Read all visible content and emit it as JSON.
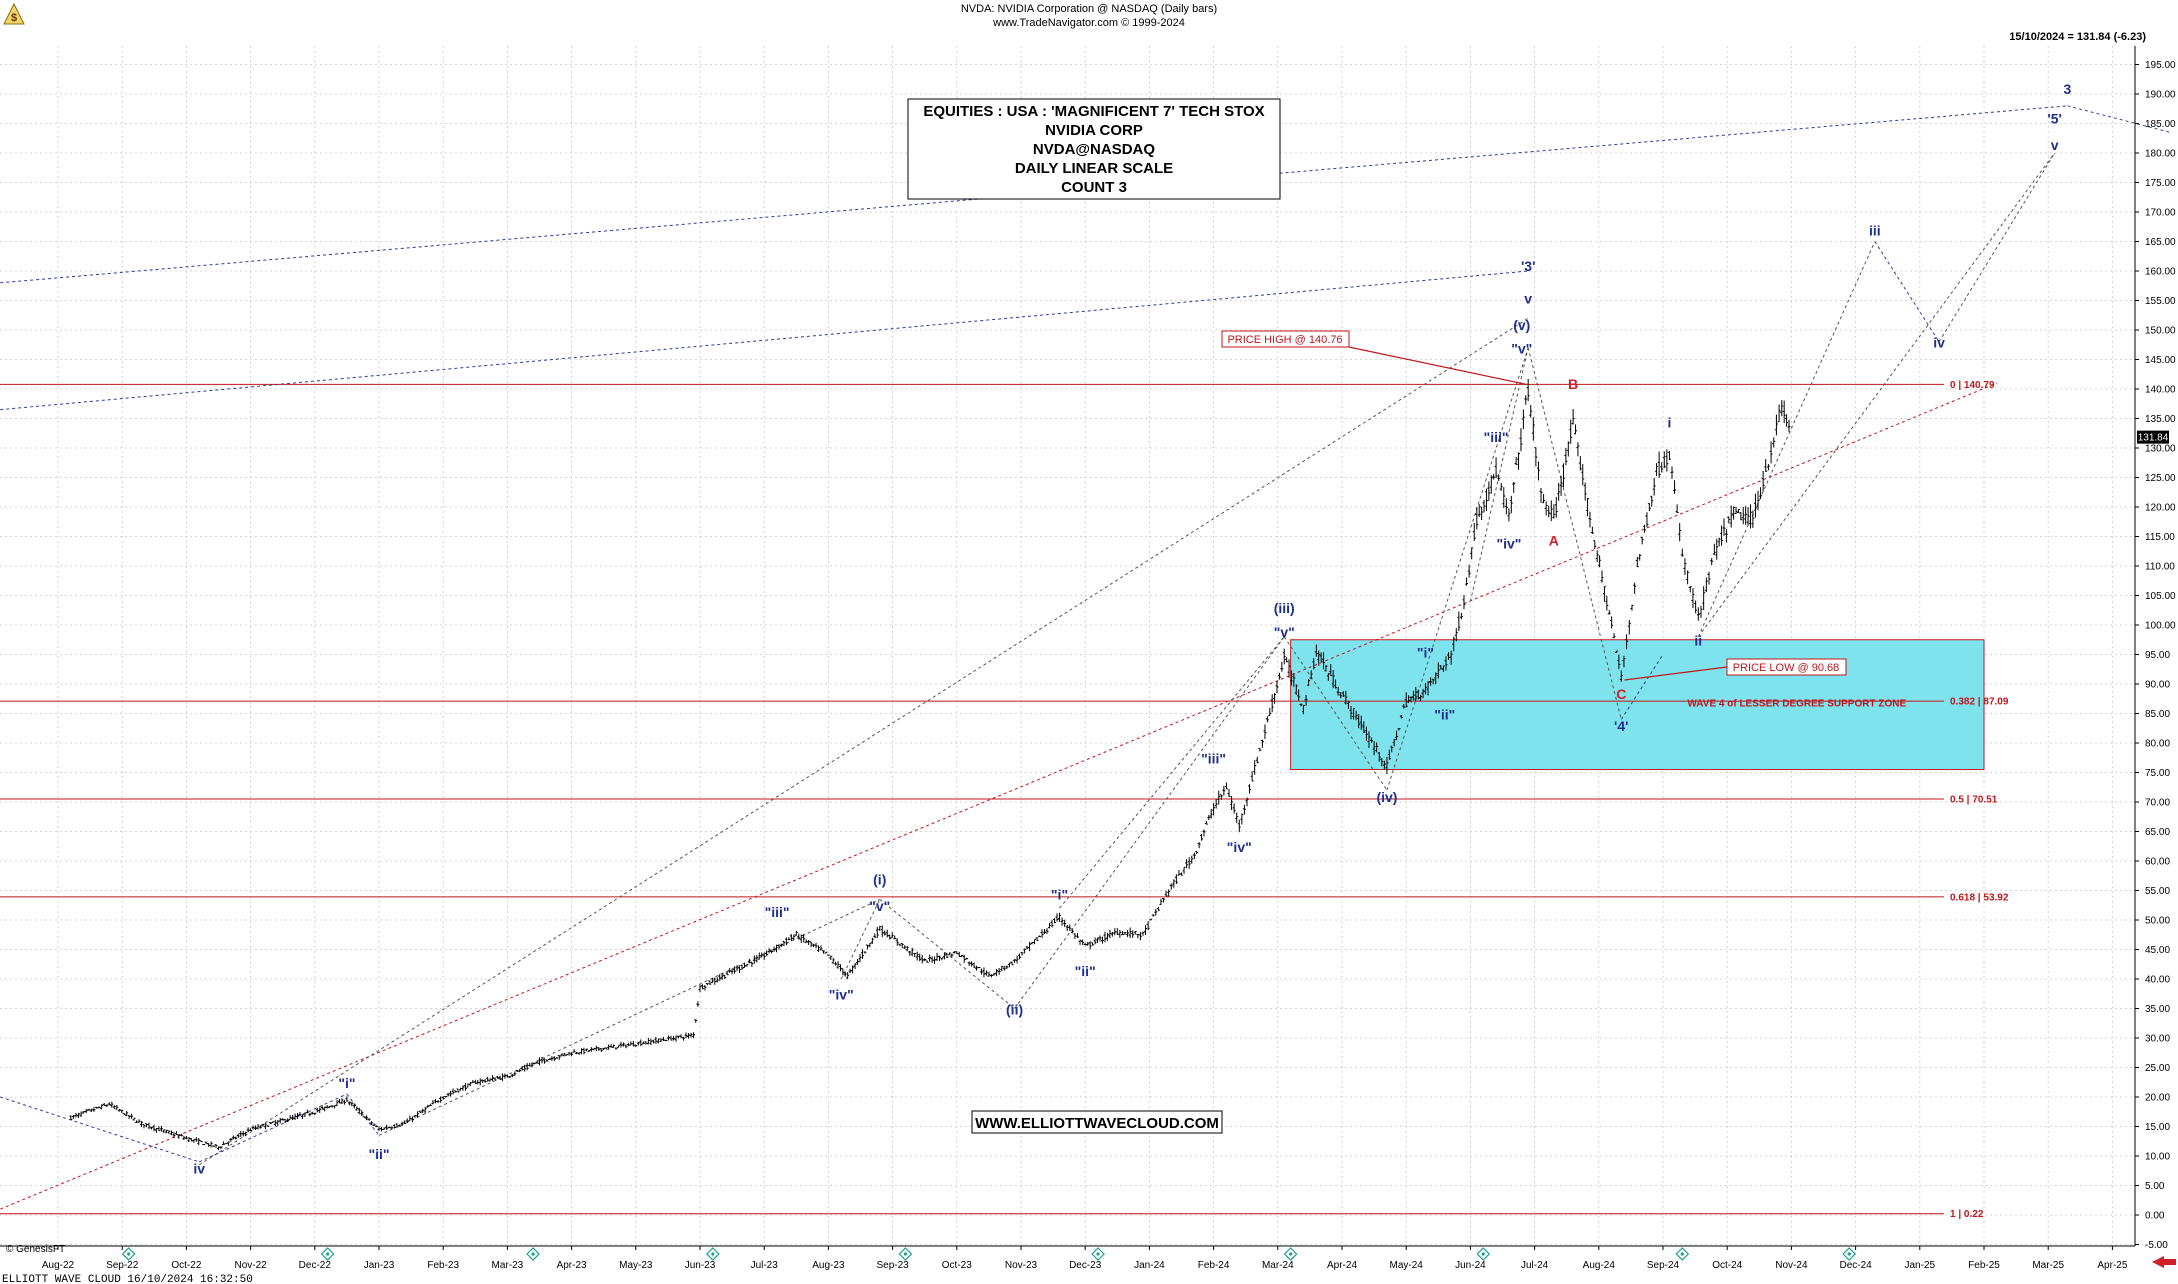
{
  "header": {
    "line1": "NVDA:  NVIDIA Corporation @ NASDAQ  (Daily bars)",
    "line2": "www.TradeNavigator.com © 1999-2024",
    "last_quote": "15/10/2024 = 131.84 (-6.23)"
  },
  "info_box": {
    "lines": [
      "EQUITIES : USA : 'MAGNIFICENT 7' TECH STOX",
      "NVIDIA CORP",
      "NVDA@NASDAQ",
      "DAILY LINEAR SCALE",
      "COUNT 3"
    ]
  },
  "website_label": "WWW.ELLIOTTWAVECLOUD.COM",
  "current_price_tag": "131.84",
  "footer": {
    "brand": "© GenesisFT",
    "stamp": "ELLIOTT WAVE CLOUD   16/10/2024 16:32:50"
  },
  "colors": {
    "wave_label": "#1f2f8f",
    "corrective_label": "#d0202a",
    "fib_line": "#c0161b",
    "support_zone": "#7fe3ee",
    "price_bar": "#000000",
    "trend_line_blue": "#2a3aa0"
  },
  "icons": [
    "event-diamond-icon",
    "scroll-arrow-icon",
    "genesis-logo-icon"
  ],
  "chart_data": {
    "type": "ohlc_bar",
    "title": "NVDA:  NVIDIA Corporation @ NASDAQ  (Daily bars)",
    "ylim": [
      -7,
      197
    ],
    "y_ticks": [
      -5,
      0,
      5,
      10,
      15,
      20,
      25,
      30,
      35,
      40,
      45,
      50,
      55,
      60,
      65,
      70,
      75,
      80,
      85,
      90,
      95,
      100,
      105,
      110,
      115,
      120,
      125,
      130,
      135,
      140,
      145,
      150,
      155,
      160,
      165,
      170,
      175,
      180,
      185,
      190,
      195
    ],
    "y_tick_labels": [
      "-5.00",
      "0.00",
      "5.00",
      "10.00",
      "15.00",
      "20.00",
      "25.00",
      "30.00",
      "35.00",
      "40.00",
      "45.00",
      "50.00",
      "55.00",
      "60.00",
      "65.00",
      "70.00",
      "75.00",
      "80.00",
      "85.00",
      "90.00",
      "95.00",
      "100.00",
      "105.00",
      "110.00",
      "115.00",
      "120.00",
      "125.00",
      "130.00",
      "135.00",
      "140.00",
      "145.00",
      "150.00",
      "155.00",
      "160.00",
      "165.00",
      "170.00",
      "175.00",
      "180.00",
      "185.00",
      "190.00",
      "195.00"
    ],
    "x_tick_labels": [
      "Aug-22",
      "Sep-22",
      "Oct-22",
      "Nov-22",
      "Dec-22",
      "Jan-23",
      "Feb-23",
      "Mar-23",
      "Apr-23",
      "May-23",
      "Jun-23",
      "Jul-23",
      "Aug-23",
      "Sep-23",
      "Oct-23",
      "Nov-23",
      "Dec-23",
      "Jan-24",
      "Feb-24",
      "Mar-24",
      "Apr-24",
      "May-24",
      "Jun-24",
      "Jul-24",
      "Aug-24",
      "Sep-24",
      "Oct-24",
      "Nov-24",
      "Dec-24",
      "Jan-25",
      "Feb-25",
      "Mar-25",
      "Apr-25"
    ],
    "price_path": [
      {
        "t": 0.2,
        "p": 16.5
      },
      {
        "t": 0.8,
        "p": 18.8
      },
      {
        "t": 1.3,
        "p": 15.5
      },
      {
        "t": 2.0,
        "p": 13.0
      },
      {
        "t": 2.5,
        "p": 11.5
      },
      {
        "t": 3.0,
        "p": 14.5
      },
      {
        "t": 4.0,
        "p": 17.5
      },
      {
        "t": 4.5,
        "p": 19.5
      },
      {
        "t": 5.0,
        "p": 14.5
      },
      {
        "t": 5.4,
        "p": 15.5
      },
      {
        "t": 6.0,
        "p": 20.0
      },
      {
        "t": 6.5,
        "p": 22.5
      },
      {
        "t": 7.0,
        "p": 23.5
      },
      {
        "t": 7.5,
        "p": 26.0
      },
      {
        "t": 8.0,
        "p": 27.5
      },
      {
        "t": 9.0,
        "p": 29.0
      },
      {
        "t": 9.9,
        "p": 30.5
      },
      {
        "t": 10.0,
        "p": 38.5
      },
      {
        "t": 11.0,
        "p": 44.0
      },
      {
        "t": 11.5,
        "p": 47.5
      },
      {
        "t": 12.0,
        "p": 44.0
      },
      {
        "t": 12.3,
        "p": 40.5
      },
      {
        "t": 12.8,
        "p": 48.5
      },
      {
        "t": 13.5,
        "p": 43.0
      },
      {
        "t": 14.0,
        "p": 44.5
      },
      {
        "t": 14.5,
        "p": 40.5
      },
      {
        "t": 14.9,
        "p": 43.0
      },
      {
        "t": 15.6,
        "p": 50.5
      },
      {
        "t": 16.0,
        "p": 45.5
      },
      {
        "t": 16.5,
        "p": 48.0
      },
      {
        "t": 16.9,
        "p": 47.5
      },
      {
        "t": 17.3,
        "p": 55.0
      },
      {
        "t": 17.7,
        "p": 61.0
      },
      {
        "t": 18.0,
        "p": 69.0
      },
      {
        "t": 18.2,
        "p": 72.5
      },
      {
        "t": 18.4,
        "p": 66.0
      },
      {
        "t": 18.8,
        "p": 82.0
      },
      {
        "t": 19.1,
        "p": 94.5
      },
      {
        "t": 19.4,
        "p": 86.0
      },
      {
        "t": 19.6,
        "p": 95.5
      },
      {
        "t": 19.9,
        "p": 90.0
      },
      {
        "t": 20.3,
        "p": 83.0
      },
      {
        "t": 20.7,
        "p": 76.0
      },
      {
        "t": 21.0,
        "p": 87.0
      },
      {
        "t": 21.3,
        "p": 89.0
      },
      {
        "t": 21.7,
        "p": 95.0
      },
      {
        "t": 21.9,
        "p": 104.0
      },
      {
        "t": 22.1,
        "p": 118.0
      },
      {
        "t": 22.4,
        "p": 126.0
      },
      {
        "t": 22.6,
        "p": 118.0
      },
      {
        "t": 22.9,
        "p": 140.0
      },
      {
        "t": 23.1,
        "p": 122.0
      },
      {
        "t": 23.3,
        "p": 118.0
      },
      {
        "t": 23.6,
        "p": 134.0
      },
      {
        "t": 23.9,
        "p": 116.0
      },
      {
        "t": 24.2,
        "p": 100.0
      },
      {
        "t": 24.35,
        "p": 91.0
      },
      {
        "t": 24.6,
        "p": 110.0
      },
      {
        "t": 24.9,
        "p": 126.0
      },
      {
        "t": 25.1,
        "p": 129.0
      },
      {
        "t": 25.3,
        "p": 112.0
      },
      {
        "t": 25.55,
        "p": 101.0
      },
      {
        "t": 25.8,
        "p": 112.0
      },
      {
        "t": 26.1,
        "p": 119.0
      },
      {
        "t": 26.4,
        "p": 118.0
      },
      {
        "t": 26.6,
        "p": 126.0
      },
      {
        "t": 26.85,
        "p": 137.0
      },
      {
        "t": 27.0,
        "p": 132.0
      }
    ],
    "fib_levels": [
      {
        "value": 140.79,
        "label": "0 | 140.79"
      },
      {
        "value": 87.09,
        "label": "0.382 | 87.09"
      },
      {
        "value": 70.51,
        "label": "0.5 | 70.51"
      },
      {
        "value": 53.92,
        "label": "0.618 | 53.92"
      },
      {
        "value": 0.22,
        "label": "1 | 0.22"
      }
    ],
    "support_zone": {
      "label": "WAVE 4 of LESSER DEGREE SUPPORT ZONE",
      "from_month": 19.2,
      "to_month": 30.0,
      "low": 75.5,
      "high": 97.5
    },
    "annotations": [
      {
        "text": "PRICE HIGH @ 140.76",
        "value": 140.76
      },
      {
        "text": "PRICE LOW @ 90.68",
        "value": 90.68
      }
    ],
    "wave_labels": [
      {
        "text": "iv",
        "t": 2.2,
        "p": 7.0,
        "kind": "blue"
      },
      {
        "text": "\"i\"",
        "t": 4.5,
        "p": 21.5,
        "kind": "blue"
      },
      {
        "text": "\"ii\"",
        "t": 5.0,
        "p": 9.5,
        "kind": "blue"
      },
      {
        "text": "\"iii\"",
        "t": 11.2,
        "p": 50.5,
        "kind": "blue"
      },
      {
        "text": "\"iv\"",
        "t": 12.2,
        "p": 36.5,
        "kind": "blue"
      },
      {
        "text": "(i)",
        "t": 12.8,
        "p": 56.0,
        "kind": "blue"
      },
      {
        "text": "\"v\"",
        "t": 12.8,
        "p": 51.5,
        "kind": "blue"
      },
      {
        "text": "(ii)",
        "t": 14.9,
        "p": 34.0,
        "kind": "blue"
      },
      {
        "text": "\"i\"",
        "t": 15.6,
        "p": 53.5,
        "kind": "blue"
      },
      {
        "text": "\"ii\"",
        "t": 16.0,
        "p": 40.5,
        "kind": "blue"
      },
      {
        "text": "\"iii\"",
        "t": 18.0,
        "p": 76.5,
        "kind": "blue"
      },
      {
        "text": "\"iv\"",
        "t": 18.4,
        "p": 61.5,
        "kind": "blue"
      },
      {
        "text": "(iii)",
        "t": 19.1,
        "p": 102.0,
        "kind": "blue"
      },
      {
        "text": "\"v\"",
        "t": 19.1,
        "p": 98.0,
        "kind": "blue"
      },
      {
        "text": "(iv)",
        "t": 20.7,
        "p": 70.0,
        "kind": "blue"
      },
      {
        "text": "\"i\"",
        "t": 21.3,
        "p": 94.5,
        "kind": "blue"
      },
      {
        "text": "\"ii\"",
        "t": 21.6,
        "p": 84.0,
        "kind": "blue"
      },
      {
        "text": "\"iii\"",
        "t": 22.4,
        "p": 131.0,
        "kind": "blue"
      },
      {
        "text": "\"iv\"",
        "t": 22.6,
        "p": 113.0,
        "kind": "blue"
      },
      {
        "text": "(v)",
        "t": 22.8,
        "p": 150.0,
        "kind": "blue"
      },
      {
        "text": "\"v\"",
        "t": 22.8,
        "p": 146.0,
        "kind": "blue"
      },
      {
        "text": "v",
        "t": 22.9,
        "p": 154.5,
        "kind": "blue"
      },
      {
        "text": "'3'",
        "t": 22.9,
        "p": 160.0,
        "kind": "blue"
      },
      {
        "text": "A",
        "t": 23.3,
        "p": 113.5,
        "kind": "red"
      },
      {
        "text": "B",
        "t": 23.6,
        "p": 140.0,
        "kind": "red"
      },
      {
        "text": "C",
        "t": 24.35,
        "p": 87.5,
        "kind": "red"
      },
      {
        "text": "'4'",
        "t": 24.35,
        "p": 82.0,
        "kind": "blue"
      },
      {
        "text": "i",
        "t": 25.1,
        "p": 133.5,
        "kind": "blue"
      },
      {
        "text": "ii",
        "t": 25.55,
        "p": 96.5,
        "kind": "blue"
      },
      {
        "text": "iii",
        "t": 28.3,
        "p": 166.0,
        "kind": "blue"
      },
      {
        "text": "iv",
        "t": 29.3,
        "p": 147.0,
        "kind": "blue"
      },
      {
        "text": "v",
        "t": 31.1,
        "p": 180.5,
        "kind": "blue"
      },
      {
        "text": "'5'",
        "t": 31.1,
        "p": 185.0,
        "kind": "blue"
      },
      {
        "text": "3",
        "t": 31.3,
        "p": 190.0,
        "kind": "blue"
      }
    ]
  }
}
